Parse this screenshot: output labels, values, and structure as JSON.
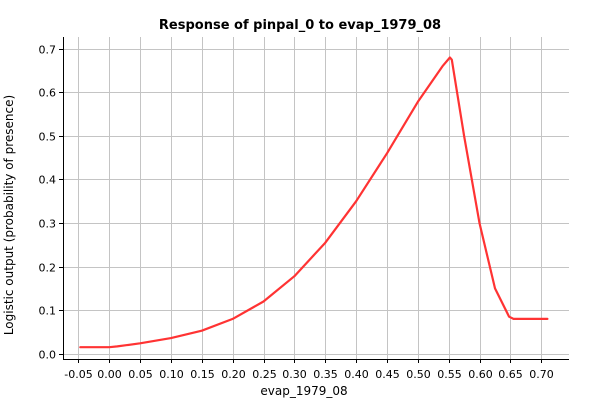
{
  "chart_data": {
    "type": "line",
    "title": "Response of pinpal_0 to evap_1979_08",
    "xlabel": "evap_1979_08",
    "ylabel": "Logistic output (probability of presence)",
    "xlim": [
      -0.075,
      0.745
    ],
    "ylim": [
      -0.012,
      0.727
    ],
    "x_ticks": [
      -0.05,
      0.0,
      0.05,
      0.1,
      0.15,
      0.2,
      0.25,
      0.3,
      0.35,
      0.4,
      0.45,
      0.5,
      0.55,
      0.6,
      0.65,
      0.7
    ],
    "x_tick_labels": [
      "-0.05",
      "0.00",
      "0.05",
      "0.10",
      "0.15",
      "0.20",
      "0.25",
      "0.30",
      "0.35",
      "0.40",
      "0.45",
      "0.50",
      "0.55",
      "0.60",
      "0.65",
      "0.70"
    ],
    "y_ticks": [
      0.0,
      0.1,
      0.2,
      0.3,
      0.4,
      0.5,
      0.6,
      0.7
    ],
    "y_tick_labels": [
      "0.0",
      "0.1",
      "0.2",
      "0.3",
      "0.4",
      "0.5",
      "0.6",
      "0.7"
    ],
    "grid": true,
    "series": [
      {
        "color": "#ff3333",
        "x": [
          -0.047,
          0.0,
          0.013,
          0.05,
          0.1,
          0.15,
          0.2,
          0.25,
          0.3,
          0.35,
          0.4,
          0.45,
          0.5,
          0.54,
          0.552,
          0.555,
          0.575,
          0.6,
          0.625,
          0.648,
          0.655,
          0.71
        ],
        "y": [
          0.015,
          0.015,
          0.017,
          0.024,
          0.036,
          0.053,
          0.08,
          0.12,
          0.178,
          0.255,
          0.35,
          0.46,
          0.578,
          0.66,
          0.68,
          0.675,
          0.5,
          0.3,
          0.15,
          0.085,
          0.08,
          0.08
        ]
      }
    ]
  }
}
